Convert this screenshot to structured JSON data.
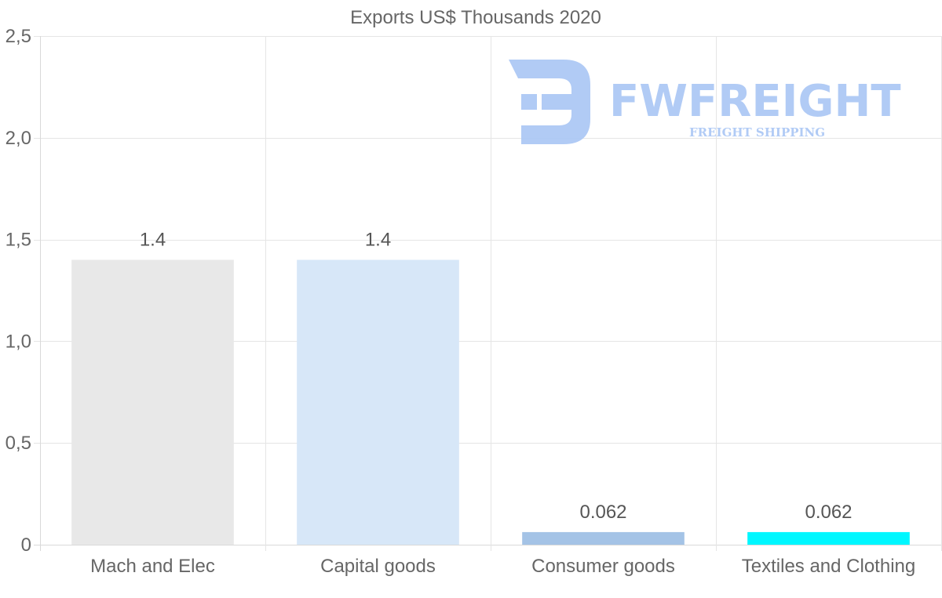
{
  "chart_data": {
    "type": "bar",
    "title": "Exports US$ Thousands 2020",
    "categories": [
      "Mach and Elec",
      "Capital goods",
      "Consumer goods",
      "Textiles and Clothing"
    ],
    "values": [
      1.4,
      1.4,
      0.062,
      0.062
    ],
    "data_labels": [
      "1.4",
      "1.4",
      "0.062",
      "0.062"
    ],
    "colors": [
      "#e8e8e8",
      "#d7e7f8",
      "#a4c3e6",
      "#00f7ff"
    ],
    "ylim": [
      0,
      2.5
    ],
    "yticks": [
      0,
      0.5,
      1.0,
      1.5,
      2.0,
      2.5
    ],
    "ytick_labels": [
      "0",
      "0,5",
      "1,0",
      "1,5",
      "2,0",
      "2,5"
    ],
    "xlabel": "",
    "ylabel": "",
    "grid": true,
    "legend": "none"
  },
  "watermark": {
    "brand": "FWFREIGHT",
    "tagline": "FREIGHT SHIPPING",
    "color": "#a9c6f5"
  }
}
